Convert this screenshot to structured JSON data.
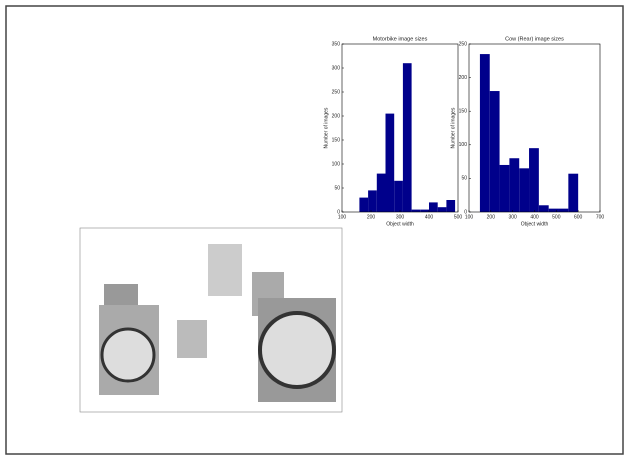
{
  "chart_data": [
    {
      "type": "histogram",
      "title": "Motorbike image sizes",
      "x_label": "Object width",
      "y_label": "Number of images",
      "bins": [
        160,
        190,
        220,
        250,
        280,
        310,
        340,
        370,
        400,
        430,
        460,
        490
      ],
      "values": [
        30,
        45,
        80,
        205,
        65,
        310,
        5,
        5,
        20,
        10,
        25
      ],
      "color": "#00008b",
      "xlim": [
        100,
        500
      ],
      "xticks": [
        100,
        200,
        300,
        400,
        500
      ],
      "ylim": [
        0,
        350
      ],
      "yticks": [
        0,
        50,
        100,
        150,
        200,
        250,
        300,
        350
      ]
    },
    {
      "type": "histogram",
      "title": "Cow (Rear) image sizes",
      "x_label": "Object width",
      "y_label": "Number of images",
      "bins": [
        150,
        195,
        240,
        285,
        330,
        375,
        420,
        465,
        510,
        555,
        600
      ],
      "values": [
        235,
        180,
        70,
        80,
        65,
        95,
        10,
        5,
        5,
        57
      ],
      "color": "#00008b",
      "xlim": [
        100,
        700
      ],
      "xticks": [
        100,
        200,
        300,
        400,
        500,
        600,
        700
      ],
      "ylim": [
        0,
        250
      ],
      "yticks": [
        0,
        50,
        100,
        150,
        200,
        250
      ]
    }
  ]
}
